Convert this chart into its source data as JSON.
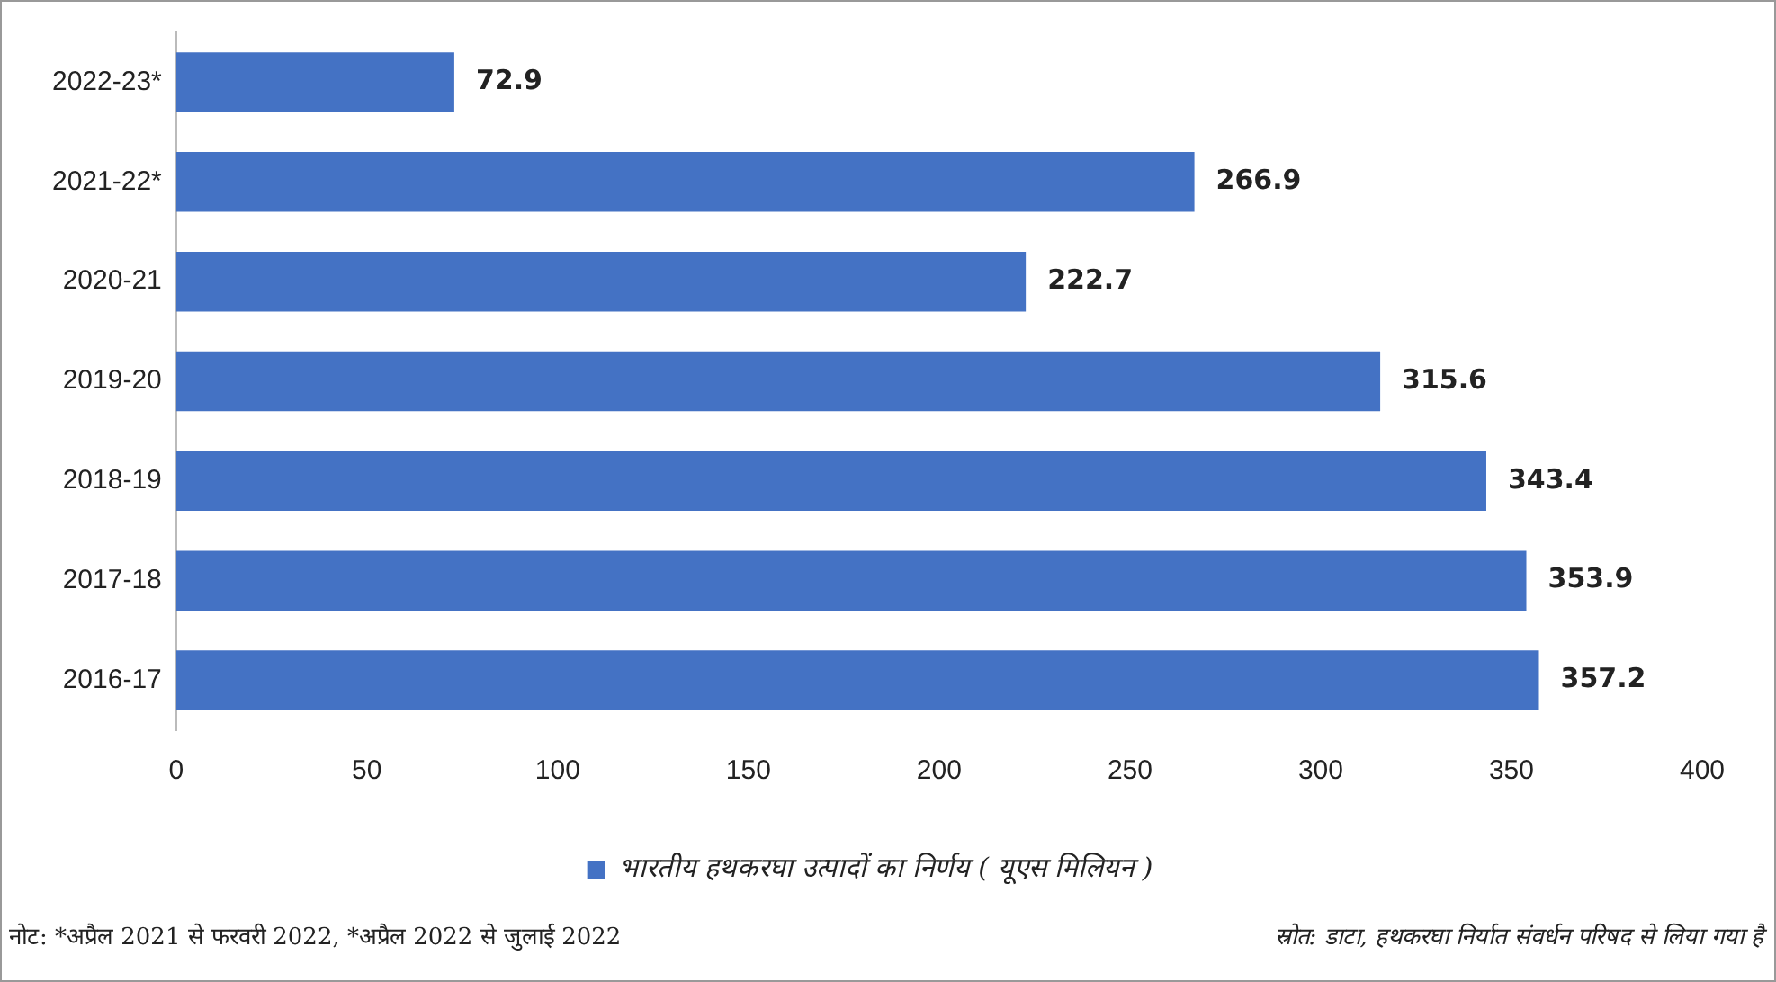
{
  "chart_data": {
    "type": "bar",
    "orientation": "horizontal",
    "categories": [
      "2022-23*",
      "2021-22*",
      "2020-21",
      "2019-20",
      "2018-19",
      "2017-18",
      "2016-17"
    ],
    "series": [
      {
        "name": "भारतीय हथकरघा उत्पादों का निर्णय ( यूएस मिलियन )",
        "color": "#4472c4",
        "values": [
          72.9,
          266.9,
          222.7,
          315.6,
          343.4,
          353.9,
          357.2
        ]
      }
    ],
    "xlim": [
      0,
      400
    ],
    "xticks": [
      0,
      50,
      100,
      150,
      200,
      250,
      300,
      350,
      400
    ],
    "data_labels": true,
    "grid": false,
    "legend": "bottom",
    "annotations": [
      "नोट: *अप्रैल 2021 से फरवरी 2022, *अप्रैल 2022 से जुलाई 2022",
      "स्रोत: डाटा, हथकरघा निर्यात संवर्धन परिषद से लिया गया है"
    ]
  }
}
